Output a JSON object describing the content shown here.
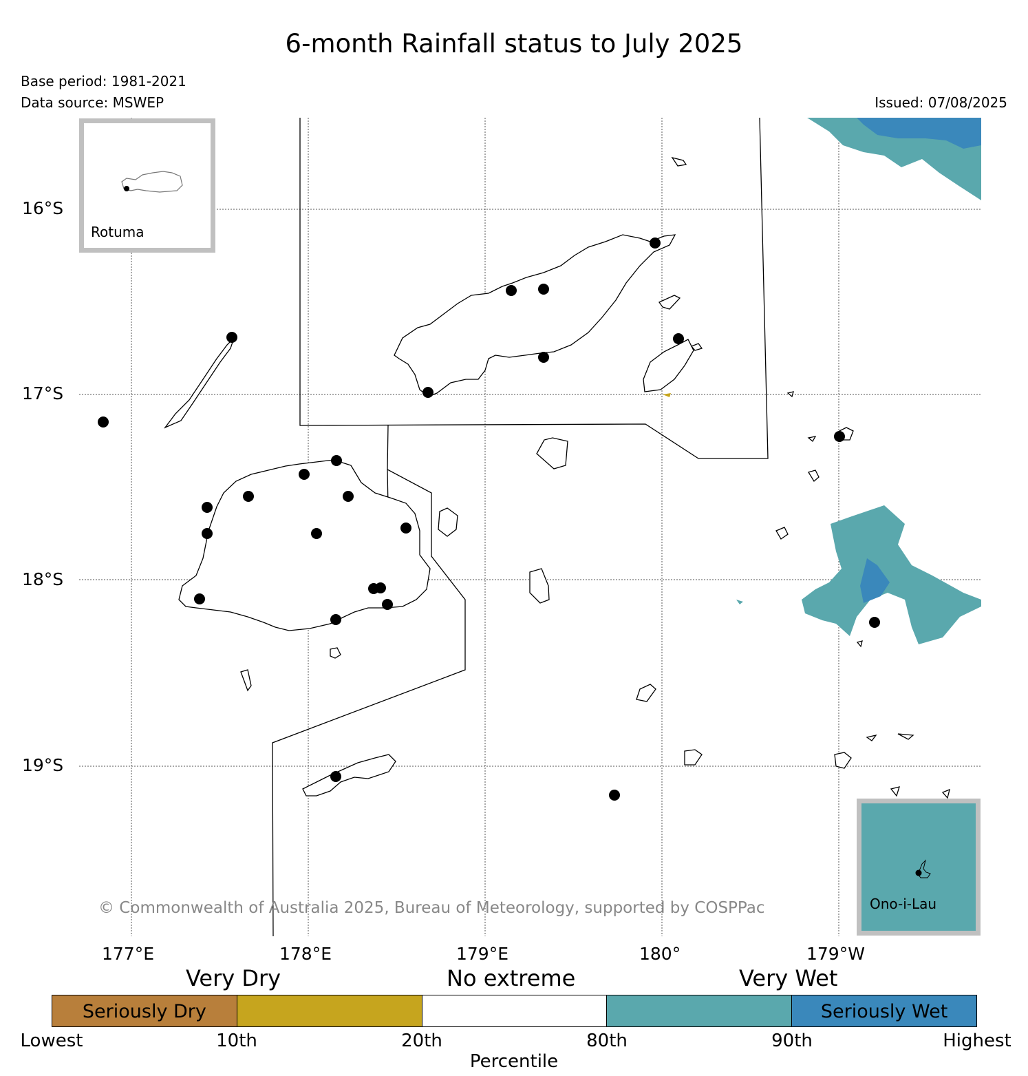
{
  "title": "6-month Rainfall status to July 2025",
  "base_period": "Base period: 1981-2021",
  "data_source": "Data source: MSWEP",
  "issued": "Issued: 07/08/2025",
  "latitude_labels": [
    "16°S",
    "17°S",
    "18°S",
    "19°S"
  ],
  "longitude_labels": [
    "177°E",
    "178°E",
    "179°E",
    "180°",
    "179°W"
  ],
  "insets": {
    "top_left": "Rotuma",
    "bottom_right": "Ono-i-Lau"
  },
  "copyright": "© Commonwealth of Australia 2025, Bureau of Meteorology, supported by COSPPac",
  "legend": {
    "category_labels": [
      "Very Dry",
      "No extreme",
      "Very Wet"
    ],
    "segments": [
      {
        "label": "Seriously Dry",
        "color": "#b87f3b"
      },
      {
        "label": "",
        "color": "#c6a51e"
      },
      {
        "label": "",
        "color": "#ffffff"
      },
      {
        "label": "",
        "color": "#5aa8ad"
      },
      {
        "label": "Seriously Wet",
        "color": "#3a88bb"
      }
    ],
    "ticks": [
      "Lowest",
      "10th",
      "20th",
      "80th",
      "90th",
      "Highest"
    ],
    "axis_title": "Percentile"
  }
}
